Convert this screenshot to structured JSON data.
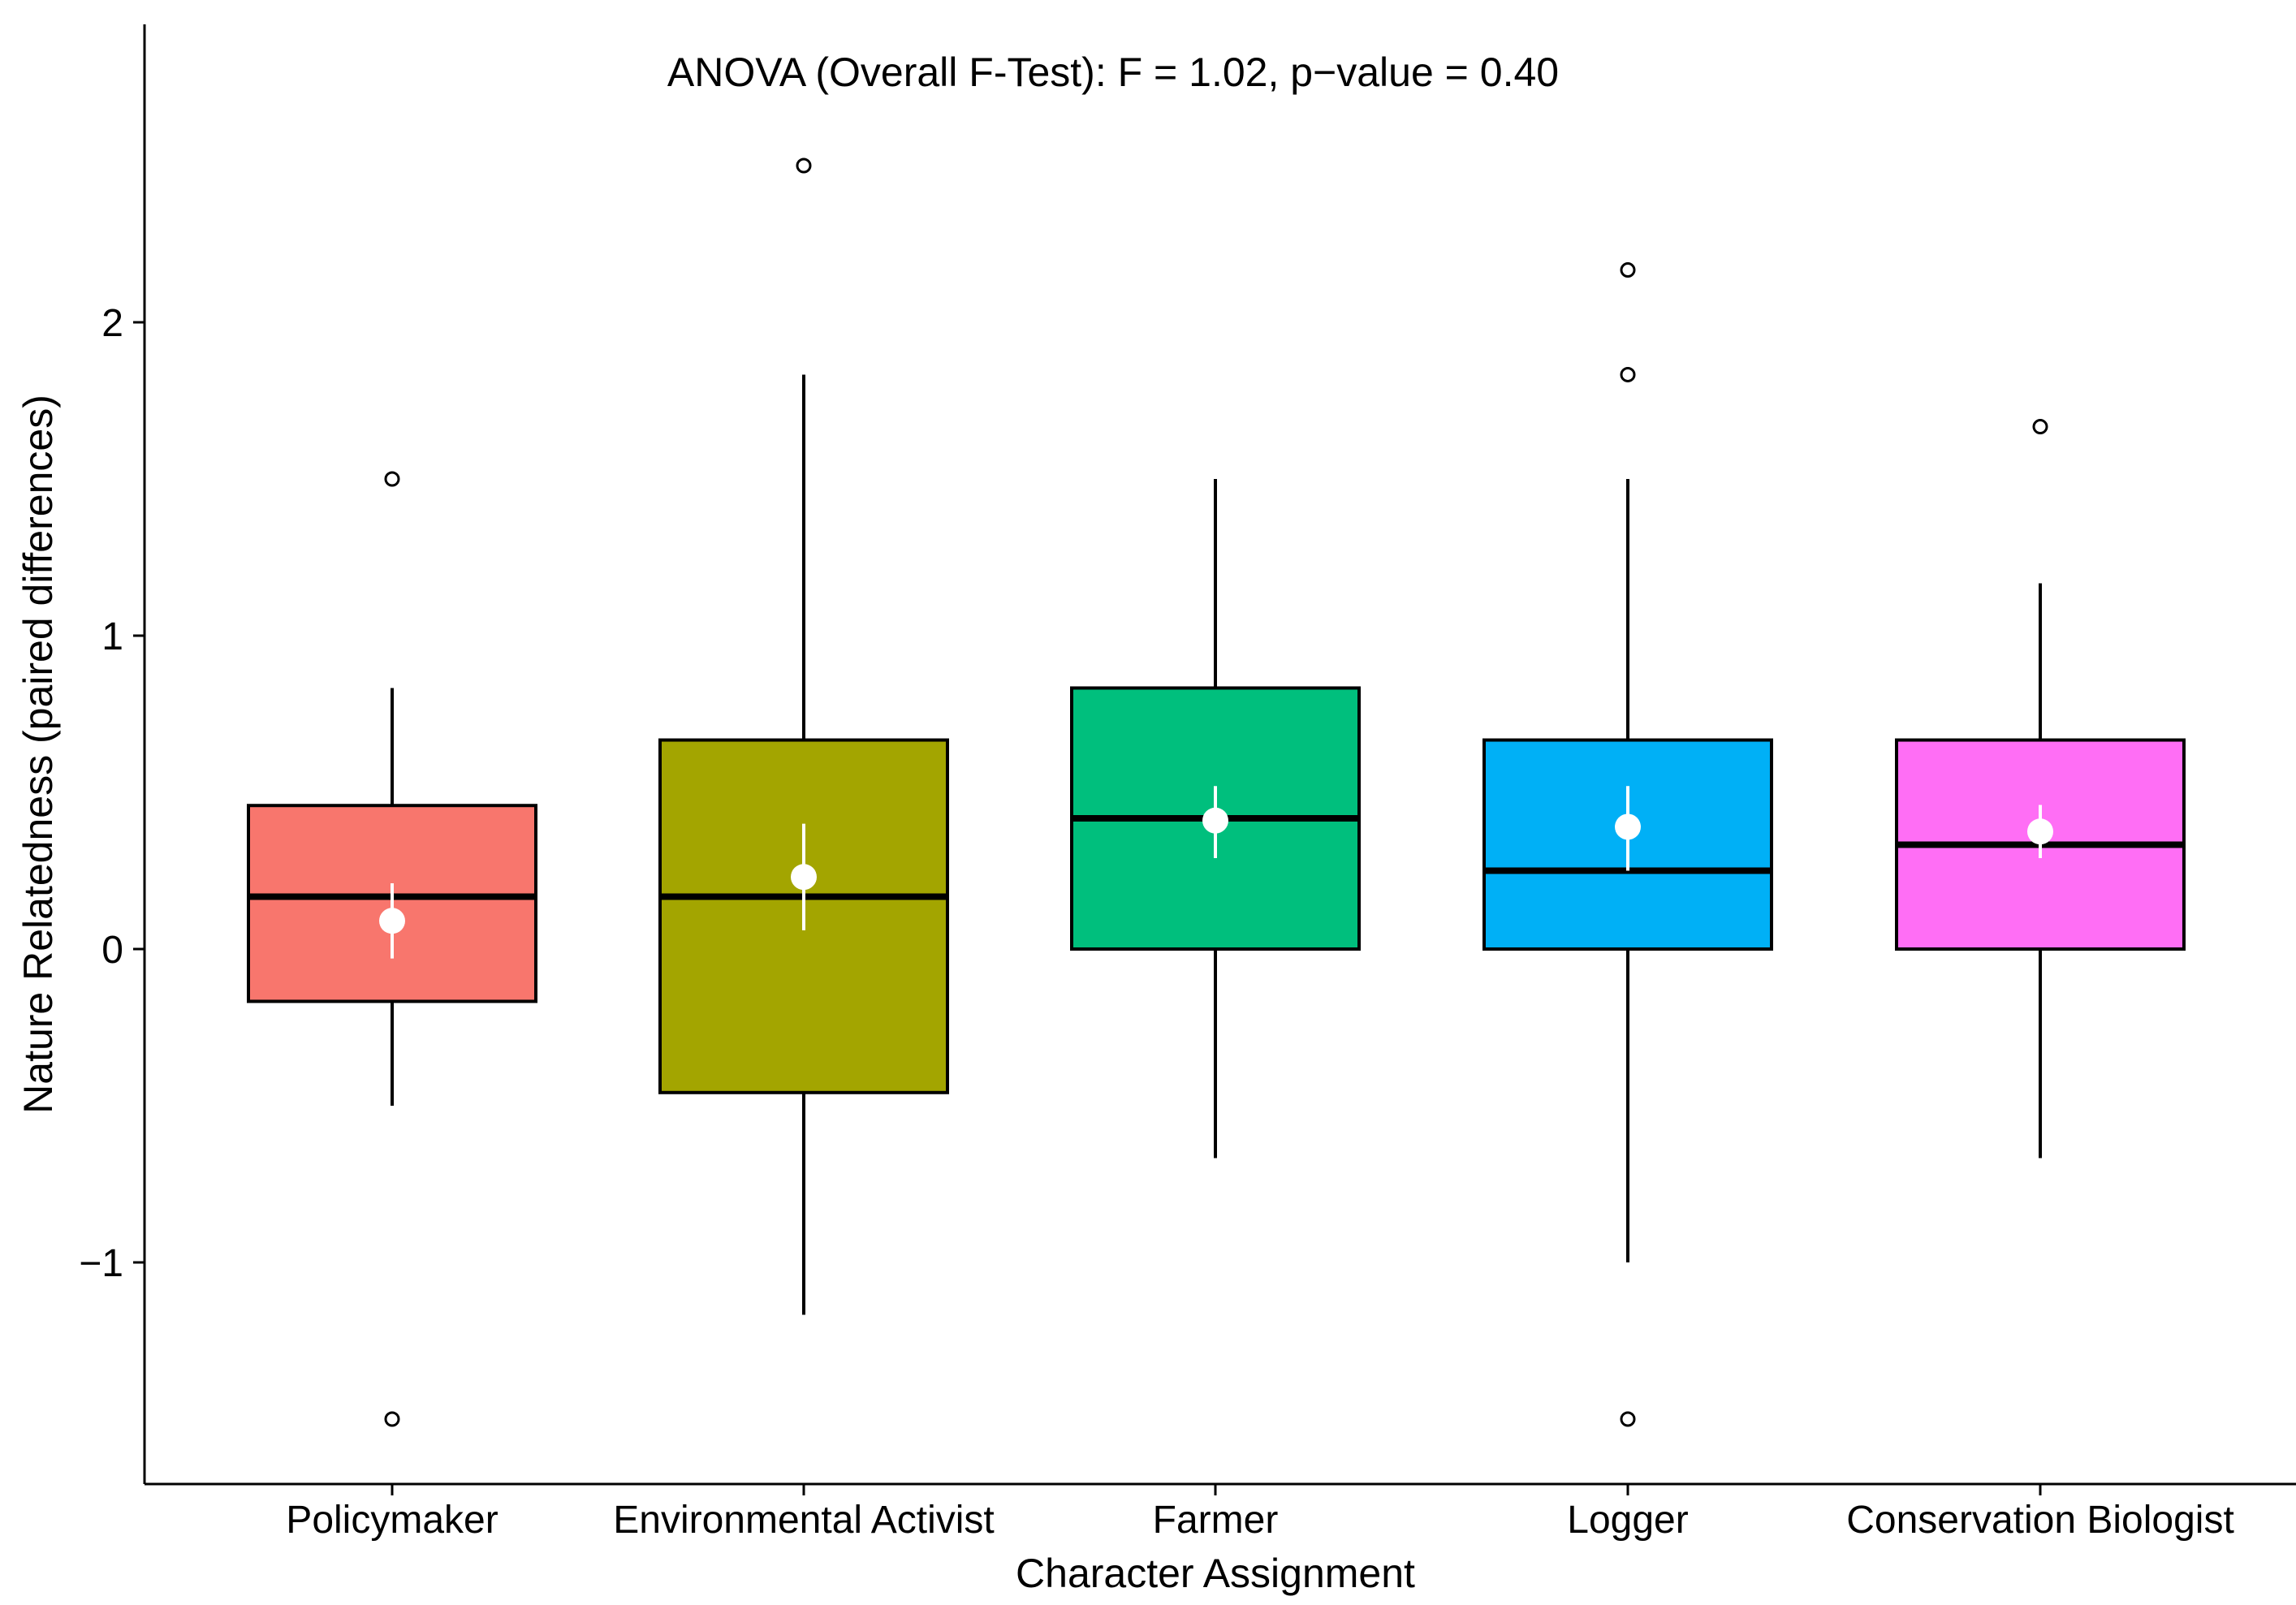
{
  "chart_data": {
    "type": "box",
    "title": "ANOVA (Overall F-Test): F = 1.02, p−value = 0.40",
    "xlabel": "Character Assignment",
    "ylabel": "Nature Relatedness (paired differences)",
    "ylim": [
      -1.7,
      2.85
    ],
    "yticks": [
      -1,
      0,
      1,
      2
    ],
    "ytick_labels": [
      "−1",
      "0",
      "1",
      "2"
    ],
    "grid": false,
    "legend": "none",
    "categories": [
      "Policymaker",
      "Environmental Activist",
      "Farmer",
      "Logger",
      "Conservation Biologist"
    ],
    "boxes": [
      {
        "name": "Policymaker",
        "color": "#F8766D",
        "whisker_low": -0.5,
        "q1": -0.167,
        "median": 0.167,
        "q3": 0.458,
        "whisker_high": 0.833,
        "mean": 0.09,
        "mean_ci": [
          -0.03,
          0.21
        ],
        "outliers": [
          1.5,
          -1.5
        ]
      },
      {
        "name": "Environmental Activist",
        "color": "#A3A500",
        "whisker_low": -1.167,
        "q1": -0.458,
        "median": 0.167,
        "q3": 0.667,
        "whisker_high": 1.833,
        "mean": 0.23,
        "mean_ci": [
          0.06,
          0.4
        ],
        "outliers": [
          2.5
        ]
      },
      {
        "name": "Farmer",
        "color": "#00BF7D",
        "whisker_low": -0.667,
        "q1": 0.0,
        "median": 0.417,
        "q3": 0.833,
        "whisker_high": 1.5,
        "mean": 0.41,
        "mean_ci": [
          0.29,
          0.52
        ],
        "outliers": []
      },
      {
        "name": "Logger",
        "color": "#00B0F6",
        "whisker_low": -1.0,
        "q1": 0.0,
        "median": 0.25,
        "q3": 0.667,
        "whisker_high": 1.5,
        "mean": 0.39,
        "mean_ci": [
          0.25,
          0.52
        ],
        "outliers": [
          2.167,
          1.833,
          -1.5
        ]
      },
      {
        "name": "Conservation Biologist",
        "color": "#FF6EF5",
        "whisker_low": -0.667,
        "q1": 0.0,
        "median": 0.333,
        "q3": 0.667,
        "whisker_high": 1.167,
        "mean": 0.375,
        "mean_ci": [
          0.29,
          0.46
        ],
        "outliers": [
          1.667
        ]
      }
    ]
  }
}
